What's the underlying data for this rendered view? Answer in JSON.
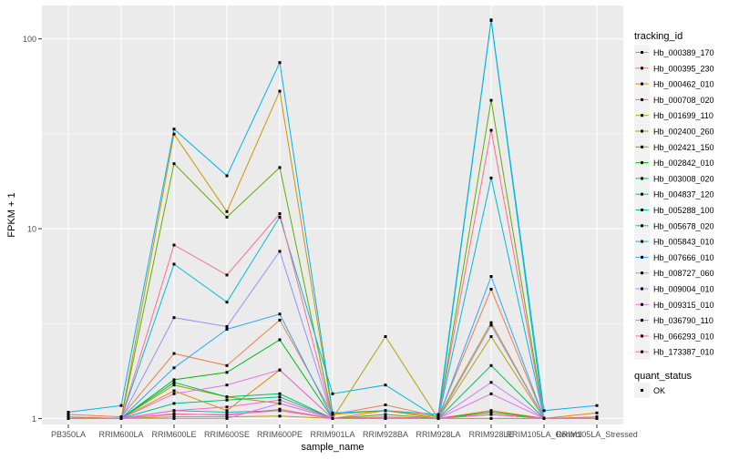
{
  "chart_data": {
    "type": "line",
    "xlabel": "sample_name",
    "ylabel": "FPKM + 1",
    "y_scale": "log10",
    "ylim": [
      0.93,
      150
    ],
    "y_ticks": [
      1,
      10,
      100
    ],
    "y_tick_labels": [
      "1",
      "10",
      "100"
    ],
    "grid": true,
    "legend_position": "right",
    "panel_background": "#ebebeb",
    "grid_color": "#ffffff",
    "categories": [
      "PB350LA",
      "RRIM600LA",
      "RRIM600LE",
      "RRIM600SE",
      "RRIM600PE",
      "RRIM901LA",
      "RRIM928BA",
      "RRIM928LA",
      "RRIM928LE",
      "RRIM105LA_Control",
      "RRIM105LA_Stressed"
    ],
    "series": [
      {
        "name": "Hb_000389_170",
        "color": "#F8766D",
        "values": [
          1.0,
          1.0,
          1.06,
          1.04,
          1.12,
          1.0,
          1.02,
          1.0,
          1.1,
          1.0,
          1.0
        ]
      },
      {
        "name": "Hb_000395_230",
        "color": "#EF7F49",
        "values": [
          1.05,
          1.02,
          2.2,
          1.9,
          3.3,
          1.05,
          1.18,
          1.02,
          4.8,
          1.0,
          1.02
        ]
      },
      {
        "name": "Hb_000462_010",
        "color": "#E08B00",
        "values": [
          1.0,
          1.0,
          1.4,
          1.1,
          1.8,
          1.0,
          1.1,
          1.0,
          1.1,
          1.0,
          1.07
        ]
      },
      {
        "name": "Hb_000708_020",
        "color": "#CD9600",
        "values": [
          1.02,
          1.0,
          31.5,
          12.3,
          53.0,
          1.05,
          1.1,
          1.02,
          3.2,
          1.0,
          1.0
        ]
      },
      {
        "name": "Hb_001699_110",
        "color": "#B5A000",
        "values": [
          1.0,
          1.0,
          1.02,
          1.02,
          1.03,
          1.0,
          2.7,
          1.0,
          2.7,
          1.0,
          1.0
        ]
      },
      {
        "name": "Hb_002400_260",
        "color": "#98A600",
        "values": [
          1.0,
          1.0,
          1.5,
          1.3,
          1.2,
          1.0,
          1.0,
          1.0,
          1.0,
          1.0,
          1.0
        ]
      },
      {
        "name": "Hb_002421_150",
        "color": "#5EAF00",
        "values": [
          1.0,
          1.0,
          22.0,
          11.5,
          21.0,
          1.0,
          1.05,
          1.0,
          47.5,
          1.0,
          1.0
        ]
      },
      {
        "name": "Hb_002842_010",
        "color": "#00B813",
        "values": [
          1.0,
          1.0,
          1.6,
          1.75,
          2.6,
          1.0,
          1.0,
          1.0,
          1.08,
          1.0,
          1.0
        ]
      },
      {
        "name": "Hb_003008_020",
        "color": "#00BD5C",
        "values": [
          1.0,
          1.0,
          1.55,
          1.3,
          1.35,
          1.0,
          1.0,
          1.0,
          1.9,
          1.0,
          1.0
        ]
      },
      {
        "name": "Hb_004837_120",
        "color": "#00BF7D",
        "values": [
          1.0,
          1.0,
          1.2,
          1.25,
          1.3,
          1.0,
          1.0,
          1.0,
          1.05,
          1.0,
          1.0
        ]
      },
      {
        "name": "Hb_005288_100",
        "color": "#00C0B0",
        "values": [
          1.0,
          1.0,
          1.1,
          1.08,
          1.1,
          1.0,
          1.0,
          1.0,
          125.0,
          1.0,
          1.0
        ]
      },
      {
        "name": "Hb_005678_020",
        "color": "#00BBDB",
        "values": [
          1.0,
          1.0,
          6.5,
          4.1,
          11.5,
          1.35,
          1.5,
          1.0,
          18.5,
          1.0,
          1.0
        ]
      },
      {
        "name": "Hb_005843_010",
        "color": "#00B4EF",
        "values": [
          1.08,
          1.17,
          33.5,
          19.0,
          75.0,
          1.07,
          1.1,
          1.05,
          126.0,
          1.1,
          1.17
        ]
      },
      {
        "name": "Hb_007666_010",
        "color": "#2AA7FF",
        "values": [
          1.0,
          1.0,
          1.85,
          2.95,
          3.55,
          1.0,
          1.0,
          1.0,
          5.6,
          1.0,
          1.0
        ]
      },
      {
        "name": "Hb_008727_060",
        "color": "#9590FF",
        "values": [
          1.0,
          1.0,
          3.4,
          3.05,
          7.6,
          1.0,
          1.0,
          1.0,
          3.1,
          1.0,
          1.0
        ]
      },
      {
        "name": "Hb_009004_010",
        "color": "#C77CFF",
        "values": [
          1.0,
          1.0,
          1.0,
          1.0,
          1.2,
          1.0,
          1.0,
          1.0,
          1.55,
          1.0,
          1.0
        ]
      },
      {
        "name": "Hb_009315_010",
        "color": "#E76BF3",
        "values": [
          1.0,
          1.0,
          1.35,
          1.5,
          1.8,
          1.0,
          1.0,
          1.0,
          1.35,
          1.0,
          1.0
        ]
      },
      {
        "name": "Hb_036790_110",
        "color": "#FA62DB",
        "values": [
          1.0,
          1.0,
          1.1,
          1.15,
          1.25,
          1.0,
          1.0,
          1.0,
          1.05,
          1.0,
          1.0
        ]
      },
      {
        "name": "Hb_066293_010",
        "color": "#FF62BC",
        "values": [
          1.0,
          1.0,
          1.05,
          1.05,
          1.1,
          1.0,
          1.0,
          1.0,
          1.05,
          1.0,
          1.0
        ]
      },
      {
        "name": "Hb_173387_010",
        "color": "#FF6C91",
        "values": [
          1.0,
          1.0,
          8.2,
          5.7,
          12.0,
          1.0,
          1.0,
          1.0,
          33.0,
          1.0,
          1.0
        ]
      }
    ],
    "legends": [
      {
        "title": "tracking_id"
      },
      {
        "title": "quant_status",
        "entries": [
          {
            "label": "OK",
            "marker": "square",
            "color": "#000000"
          }
        ]
      }
    ]
  }
}
